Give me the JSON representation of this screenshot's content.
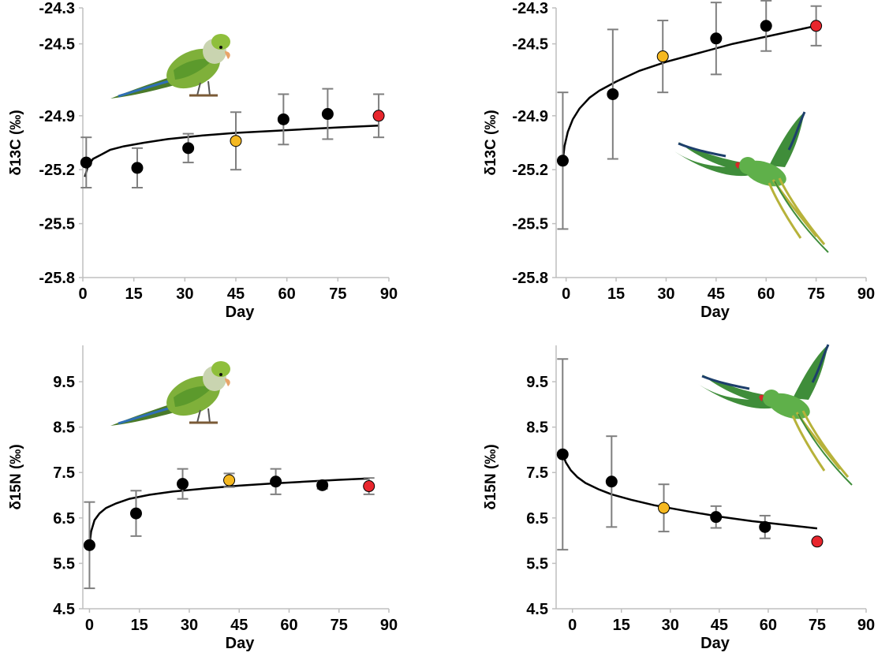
{
  "figure": {
    "background": "#ffffff"
  },
  "colors": {
    "black_point": "#000000",
    "yellow_point": "#f5b820",
    "red_point": "#e8262d",
    "error_bar": "#7f7f7f",
    "axis": "#bfbfbf",
    "curve": "#000000"
  },
  "chart_data": [
    {
      "type": "scatter",
      "panel": "top-left",
      "icon": "monk-parakeet-perched-icon",
      "xlabel": "Day",
      "ylabel": "δ13C (‰)",
      "xlim": [
        0,
        90
      ],
      "ylim": [
        -25.8,
        -24.3
      ],
      "x_ticks": [
        0,
        15,
        30,
        45,
        60,
        75,
        90
      ],
      "x_tick_labels": [
        "0",
        "15",
        "30",
        "45",
        "60",
        "75",
        "90"
      ],
      "y_ticks": [
        -25.8,
        -25.5,
        -25.2,
        -24.9,
        -24.5,
        -24.3
      ],
      "y_tick_labels": [
        "-25.8",
        "-25.5",
        "-25.2",
        "-24.9",
        "-24.5",
        "-24.3"
      ],
      "points": [
        {
          "x": 1,
          "y": -25.16,
          "err": 0.14,
          "color": "black"
        },
        {
          "x": 16,
          "y": -25.19,
          "err": 0.11,
          "color": "black"
        },
        {
          "x": 31,
          "y": -25.08,
          "err": 0.08,
          "color": "black"
        },
        {
          "x": 45,
          "y": -25.04,
          "err": 0.16,
          "color": "yellow"
        },
        {
          "x": 59,
          "y": -24.92,
          "err": 0.14,
          "color": "black"
        },
        {
          "x": 72,
          "y": -24.89,
          "err": 0.14,
          "color": "black"
        },
        {
          "x": 87,
          "y": -24.9,
          "err": 0.12,
          "color": "red"
        }
      ],
      "curve": {
        "x": [
          0.6,
          1.5,
          3,
          5,
          8,
          12,
          18,
          25,
          35,
          45,
          55,
          65,
          75,
          87
        ],
        "y": [
          -25.24,
          -25.18,
          -25.14,
          -25.12,
          -25.09,
          -25.07,
          -25.05,
          -25.03,
          -25.01,
          -24.995,
          -24.985,
          -24.975,
          -24.965,
          -24.955
        ]
      }
    },
    {
      "type": "scatter",
      "panel": "top-right",
      "icon": "ring-necked-parakeet-flying-icon",
      "xlabel": "Day",
      "ylabel": "δ13C (‰)",
      "xlim": [
        -3,
        90
      ],
      "ylim": [
        -25.8,
        -24.3
      ],
      "x_ticks": [
        0,
        15,
        30,
        45,
        60,
        75,
        90
      ],
      "x_tick_labels": [
        "0",
        "15",
        "30",
        "45",
        "60",
        "75",
        "90"
      ],
      "y_ticks": [
        -25.8,
        -25.5,
        -25.2,
        -24.9,
        -24.5,
        -24.3
      ],
      "y_tick_labels": [
        "-25.8",
        "-25.5",
        "-25.2",
        "-24.9",
        "-24.5",
        "-24.3"
      ],
      "points": [
        {
          "x": -1,
          "y": -25.15,
          "err": 0.38,
          "color": "black"
        },
        {
          "x": 14,
          "y": -24.78,
          "err": 0.36,
          "color": "black"
        },
        {
          "x": 29,
          "y": -24.57,
          "err": 0.2,
          "color": "yellow"
        },
        {
          "x": 45,
          "y": -24.47,
          "err": 0.2,
          "color": "black"
        },
        {
          "x": 60,
          "y": -24.4,
          "err": 0.14,
          "color": "black"
        },
        {
          "x": 75,
          "y": -24.4,
          "err": 0.11,
          "color": "red"
        }
      ],
      "curve": {
        "x": [
          -1,
          -0.5,
          0.5,
          2,
          4,
          7,
          10,
          15,
          22,
          30,
          40,
          50,
          60,
          75
        ],
        "y": [
          -25.15,
          -25.07,
          -24.99,
          -24.92,
          -24.86,
          -24.8,
          -24.76,
          -24.71,
          -24.65,
          -24.6,
          -24.55,
          -24.5,
          -24.46,
          -24.4
        ]
      }
    },
    {
      "type": "scatter",
      "panel": "bottom-left",
      "icon": "monk-parakeet-perched-icon",
      "xlabel": "Day",
      "ylabel": "δ15N (‰)",
      "xlim": [
        -2,
        90
      ],
      "ylim": [
        4.5,
        10.3
      ],
      "x_ticks": [
        0,
        15,
        30,
        45,
        60,
        75,
        90
      ],
      "x_tick_labels": [
        "0",
        "15",
        "30",
        "45",
        "60",
        "75",
        "90"
      ],
      "y_ticks": [
        4.5,
        5.5,
        6.5,
        7.5,
        8.5,
        9.5
      ],
      "y_tick_labels": [
        "4.5",
        "5.5",
        "6.5",
        "7.5",
        "8.5",
        "9.5"
      ],
      "points": [
        {
          "x": 0,
          "y": 5.9,
          "err": 0.95,
          "color": "black"
        },
        {
          "x": 14,
          "y": 6.6,
          "err": 0.5,
          "color": "black"
        },
        {
          "x": 28,
          "y": 7.25,
          "err": 0.33,
          "color": "black"
        },
        {
          "x": 42,
          "y": 7.33,
          "err": 0.15,
          "color": "yellow"
        },
        {
          "x": 56,
          "y": 7.3,
          "err": 0.28,
          "color": "black"
        },
        {
          "x": 70,
          "y": 7.22,
          "err": 0.08,
          "color": "black"
        },
        {
          "x": 84,
          "y": 7.2,
          "err": 0.18,
          "color": "red"
        }
      ],
      "curve": {
        "x": [
          0,
          0.5,
          1.5,
          3,
          5,
          8,
          12,
          18,
          25,
          35,
          45,
          55,
          65,
          75,
          84
        ],
        "y": [
          5.9,
          6.2,
          6.45,
          6.6,
          6.72,
          6.82,
          6.92,
          7.01,
          7.08,
          7.15,
          7.21,
          7.26,
          7.3,
          7.34,
          7.37
        ]
      }
    },
    {
      "type": "scatter",
      "panel": "bottom-right",
      "icon": "ring-necked-parakeet-flying-icon",
      "xlabel": "Day",
      "ylabel": "δ15N (‰)",
      "xlim": [
        -5,
        90
      ],
      "ylim": [
        4.5,
        10.3
      ],
      "x_ticks": [
        0,
        15,
        30,
        45,
        60,
        75,
        90
      ],
      "x_tick_labels": [
        "0",
        "15",
        "30",
        "45",
        "60",
        "75",
        "90"
      ],
      "y_ticks": [
        4.5,
        5.5,
        6.5,
        7.5,
        8.5,
        9.5
      ],
      "y_tick_labels": [
        "4.5",
        "5.5",
        "6.5",
        "7.5",
        "8.5",
        "9.5"
      ],
      "points": [
        {
          "x": -3,
          "y": 7.9,
          "err": 2.1,
          "color": "black"
        },
        {
          "x": 12,
          "y": 7.3,
          "err": 1.0,
          "color": "black"
        },
        {
          "x": 28,
          "y": 6.72,
          "err": 0.52,
          "color": "yellow"
        },
        {
          "x": 44,
          "y": 6.52,
          "err": 0.24,
          "color": "black"
        },
        {
          "x": 59,
          "y": 6.3,
          "err": 0.25,
          "color": "black"
        },
        {
          "x": 75,
          "y": 5.98,
          "err": 0,
          "color": "red"
        }
      ],
      "curve": {
        "x": [
          -3,
          -2,
          -0.5,
          1.5,
          4,
          8,
          12,
          18,
          25,
          35,
          45,
          55,
          65,
          75
        ],
        "y": [
          7.9,
          7.72,
          7.55,
          7.4,
          7.27,
          7.13,
          7.02,
          6.9,
          6.78,
          6.65,
          6.53,
          6.43,
          6.35,
          6.27
        ]
      }
    }
  ]
}
